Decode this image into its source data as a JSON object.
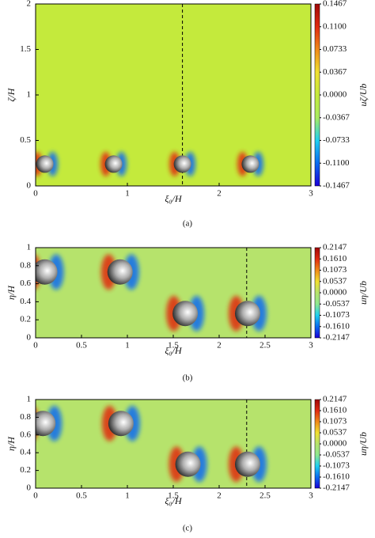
{
  "chart_data": [
    {
      "type": "contour",
      "caption": "(a)",
      "xlabel": "ξ₀/H",
      "ylabel": "ζ/H",
      "colorbar_label": "uζ/Ub",
      "background": "#c4ea3c",
      "xlim": [
        0,
        3
      ],
      "xticks": [
        0,
        1,
        2,
        3
      ],
      "ylim": [
        0,
        2
      ],
      "yticks": [
        0,
        0.5,
        1,
        1.5,
        2
      ],
      "clim": [
        -0.1467,
        0.1467
      ],
      "cticks": [
        0.1467,
        {
          "value": 0.11,
          "label": "0.1100"
        },
        0.0733,
        0.0367,
        {
          "value": 0,
          "label": "0.0000"
        },
        -0.0367,
        -0.0733,
        {
          "value": -0.11,
          "label": "-0.1100"
        },
        -0.1467
      ],
      "colormap": [
        "#1a00d8",
        "#0a6cf0",
        "#20d0f0",
        "#a8ec60",
        "#c4ea3c",
        "#f0e030",
        "#f08a18",
        "#e02a10",
        "#a00808"
      ],
      "dashed_x": 1.6,
      "spheres": {
        "x": [
          0.1,
          0.85,
          1.6,
          2.34
        ],
        "y": [
          0.24,
          0.24,
          0.24,
          0.24
        ]
      }
    },
    {
      "type": "contour",
      "caption": "(b)",
      "xlabel": "ξ₀/H",
      "ylabel": "η/H",
      "colorbar_label": "uη/Ub",
      "background": "#b6e36c",
      "xlim": [
        0,
        3
      ],
      "xticks": [
        0,
        0.5,
        1,
        1.5,
        2,
        2.5,
        3
      ],
      "ylim": [
        0,
        1
      ],
      "yticks": [
        0,
        0.2,
        0.4,
        0.6,
        0.8,
        1
      ],
      "clim": [
        -0.2147,
        0.2147
      ],
      "cticks": [
        0.2147,
        {
          "value": 0.161,
          "label": "0.1610"
        },
        0.1073,
        0.0537,
        {
          "value": 0,
          "label": "0.0000"
        },
        -0.0537,
        -0.1073,
        {
          "value": -0.161,
          "label": "-0.1610"
        },
        -0.2147
      ],
      "colormap": [
        "#1a00d8",
        "#0a6cf0",
        "#20d0f0",
        "#8ee890",
        "#b6e36c",
        "#f0e030",
        "#f08a18",
        "#e02a10",
        "#a00808"
      ],
      "dashed_x": 2.3,
      "spheres": {
        "x": [
          0.1,
          0.92,
          1.63,
          2.31
        ],
        "y": [
          0.73,
          0.73,
          0.27,
          0.27
        ]
      }
    },
    {
      "type": "contour",
      "caption": "(c)",
      "xlabel": "ξ₀/H",
      "ylabel": "η/H",
      "colorbar_label": "uη/Ub",
      "background": "#b6e36c",
      "xlim": [
        0,
        3
      ],
      "xticks": [
        0,
        0.5,
        1,
        1.5,
        2,
        2.5,
        3
      ],
      "ylim": [
        0,
        1
      ],
      "yticks": [
        0,
        0.2,
        0.4,
        0.6,
        0.8,
        1
      ],
      "clim": [
        -0.2147,
        0.2147
      ],
      "cticks": [
        0.2147,
        {
          "value": 0.161,
          "label": "0.1610"
        },
        0.1073,
        0.0537,
        {
          "value": 0,
          "label": "0.0000"
        },
        -0.0537,
        -0.1073,
        {
          "value": -0.161,
          "label": "-0.1610"
        },
        -0.2147
      ],
      "colormap": [
        "#1a00d8",
        "#0a6cf0",
        "#20d0f0",
        "#8ee890",
        "#b6e36c",
        "#f0e030",
        "#f08a18",
        "#e02a10",
        "#a00808"
      ],
      "dashed_x": 2.3,
      "spheres": {
        "x": [
          0.08,
          0.93,
          1.66,
          2.31
        ],
        "y": [
          0.73,
          0.73,
          0.27,
          0.27
        ]
      }
    }
  ]
}
